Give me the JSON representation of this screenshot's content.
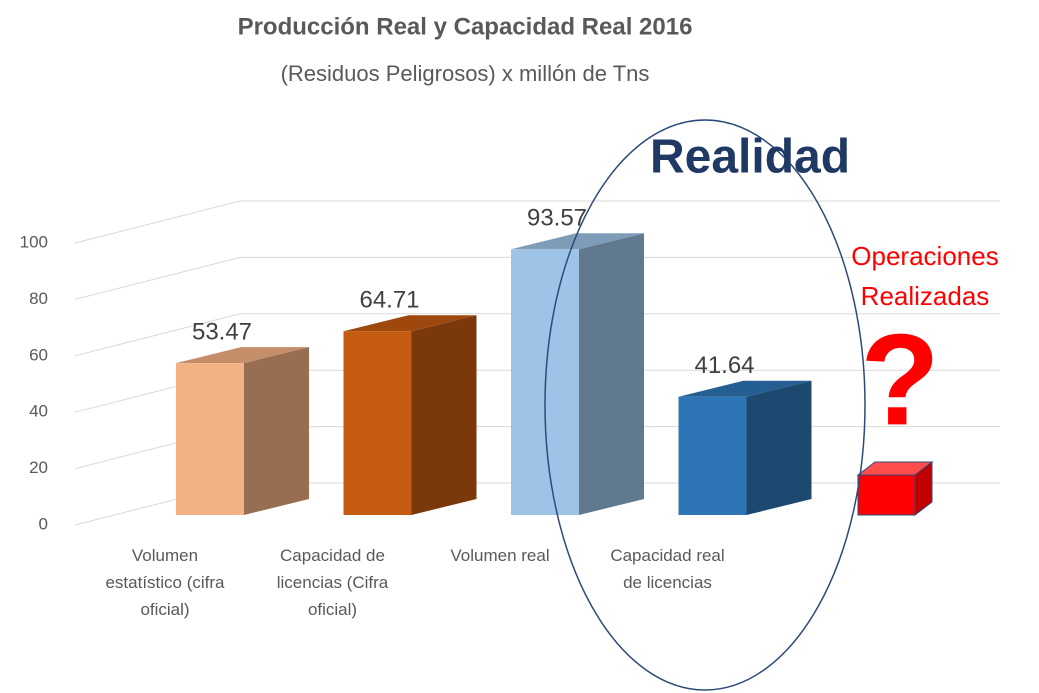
{
  "chart_data": {
    "type": "bar3d",
    "title": "Producción Real y Capacidad Real 2016",
    "subtitle": "(Residuos Peligrosos) x millón de Tns",
    "categories": [
      "Volumen estatístico (cifra oficial)",
      "Capacidad de licencias (Cifra oficial)",
      "Volumen real",
      "Capacidad real de licencias"
    ],
    "values": [
      53.47,
      64.71,
      93.57,
      41.64
    ],
    "colors": [
      "#f4b183",
      "#c55a11",
      "#9dc3e6",
      "#2e75b6"
    ],
    "ylim": [
      0,
      100
    ],
    "yticks": [
      0,
      20,
      40,
      60,
      80,
      100
    ],
    "grid": true,
    "annotations": {
      "reality": "Realidad",
      "operations": [
        "Operaciones",
        "Realizadas"
      ],
      "question": "?"
    }
  }
}
